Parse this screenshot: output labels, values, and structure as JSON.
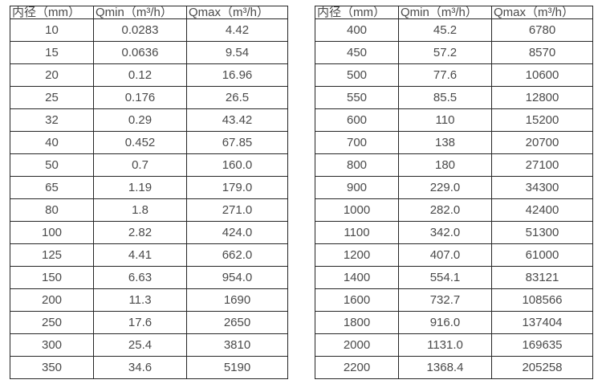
{
  "page": {
    "background": "#ffffff",
    "text_color": "#4a4a4a",
    "border_color": "#262626"
  },
  "chart_data": [
    {
      "type": "table",
      "title": "",
      "columns": [
        "内径（mm）",
        "Qmin（m³/h）",
        "Qmax（m³/h）"
      ],
      "rows": [
        [
          "10",
          "0.0283",
          "4.42"
        ],
        [
          "15",
          "0.0636",
          "9.54"
        ],
        [
          "20",
          "0.12",
          "16.96"
        ],
        [
          "25",
          "0.176",
          "26.5"
        ],
        [
          "32",
          "0.29",
          "43.42"
        ],
        [
          "40",
          "0.452",
          "67.85"
        ],
        [
          "50",
          "0.7",
          "160.0"
        ],
        [
          "65",
          "1.19",
          "179.0"
        ],
        [
          "80",
          "1.8",
          "271.0"
        ],
        [
          "100",
          "2.82",
          "424.0"
        ],
        [
          "125",
          "4.41",
          "662.0"
        ],
        [
          "150",
          "6.63",
          "954.0"
        ],
        [
          "200",
          "11.3",
          "1690"
        ],
        [
          "250",
          "17.6",
          "2650"
        ],
        [
          "300",
          "25.4",
          "3810"
        ],
        [
          "350",
          "34.6",
          "5190"
        ]
      ]
    },
    {
      "type": "table",
      "title": "",
      "columns": [
        "内径（mm）",
        "Qmin（m³/h）",
        "Qmax（m³/h）"
      ],
      "rows": [
        [
          "400",
          "45.2",
          "6780"
        ],
        [
          "450",
          "57.2",
          "8570"
        ],
        [
          "500",
          "77.6",
          "10600"
        ],
        [
          "550",
          "85.5",
          "12800"
        ],
        [
          "600",
          "110",
          "15200"
        ],
        [
          "700",
          "138",
          "20700"
        ],
        [
          "800",
          "180",
          "27100"
        ],
        [
          "900",
          "229.0",
          "34300"
        ],
        [
          "1000",
          "282.0",
          "42400"
        ],
        [
          "1100",
          "342.0",
          "51300"
        ],
        [
          "1200",
          "407.0",
          "61000"
        ],
        [
          "1400",
          "554.1",
          "83121"
        ],
        [
          "1600",
          "732.7",
          "108566"
        ],
        [
          "1800",
          "916.0",
          "137404"
        ],
        [
          "2000",
          "1131.0",
          "169635"
        ],
        [
          "2200",
          "1368.4",
          "205258"
        ]
      ]
    }
  ]
}
